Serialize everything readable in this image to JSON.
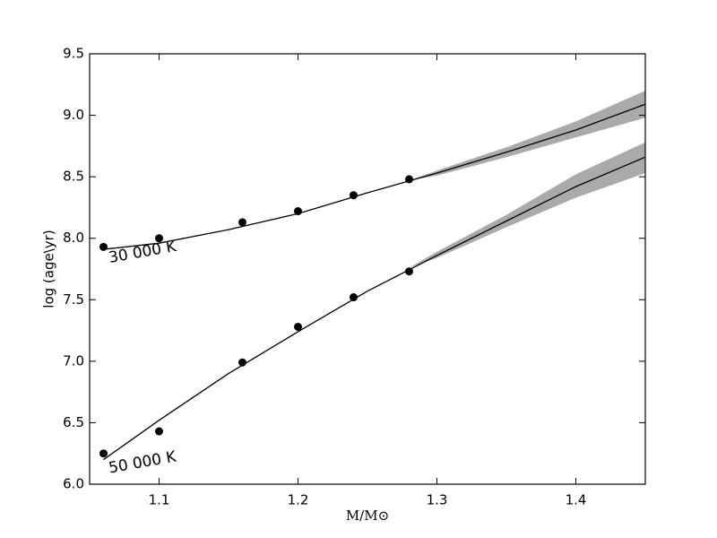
{
  "chart_data": {
    "type": "scatter",
    "xlabel": "M/M⊙",
    "ylabel": "log (age\\yr)",
    "xlim": [
      1.05,
      1.45
    ],
    "xticks": [
      1.1,
      1.2,
      1.3,
      1.4
    ],
    "ylim": [
      6.0,
      9.5
    ],
    "yticks": [
      {
        "value": 6.0,
        "label": "6.0"
      },
      6.5,
      {
        "value": 7.0,
        "label": "7.0"
      },
      7.5,
      {
        "value": 8.0,
        "label": "8.0"
      },
      8.5,
      {
        "value": 9.0,
        "label": "9.0"
      },
      9.5
    ],
    "band_color": "#aaaaaa",
    "series": [
      {
        "name": "30 000 K",
        "color": "#000000",
        "x": [
          1.06,
          1.1,
          1.16,
          1.2,
          1.24,
          1.28
        ],
        "y": [
          7.93,
          8.0,
          8.13,
          8.22,
          8.35,
          8.48
        ],
        "fit": {
          "x": [
            1.06,
            1.1,
            1.15,
            1.2,
            1.25,
            1.3,
            1.35,
            1.4,
            1.45
          ],
          "values": [
            7.91,
            7.96,
            8.07,
            8.2,
            8.37,
            8.53,
            8.7,
            8.88,
            9.09
          ]
        },
        "band": {
          "x": [
            1.28,
            1.3,
            1.35,
            1.4,
            1.45
          ],
          "lower": [
            8.47,
            8.51,
            8.66,
            8.82,
            8.98
          ],
          "upper": [
            8.47,
            8.55,
            8.74,
            8.95,
            9.2
          ]
        }
      },
      {
        "name": "50 000 K",
        "color": "#000000",
        "x": [
          1.06,
          1.1,
          1.16,
          1.2,
          1.24,
          1.28
        ],
        "y": [
          6.25,
          6.43,
          6.99,
          7.28,
          7.52,
          7.73
        ],
        "fit": {
          "x": [
            1.06,
            1.1,
            1.15,
            1.2,
            1.25,
            1.3,
            1.35,
            1.4,
            1.45
          ],
          "values": [
            6.2,
            6.52,
            6.9,
            7.24,
            7.57,
            7.86,
            8.14,
            8.42,
            8.66
          ]
        },
        "band": {
          "x": [
            1.28,
            1.3,
            1.35,
            1.4,
            1.45
          ],
          "lower": [
            7.76,
            7.84,
            8.09,
            8.33,
            8.53
          ],
          "upper": [
            7.76,
            7.89,
            8.19,
            8.52,
            8.78
          ]
        }
      }
    ]
  }
}
